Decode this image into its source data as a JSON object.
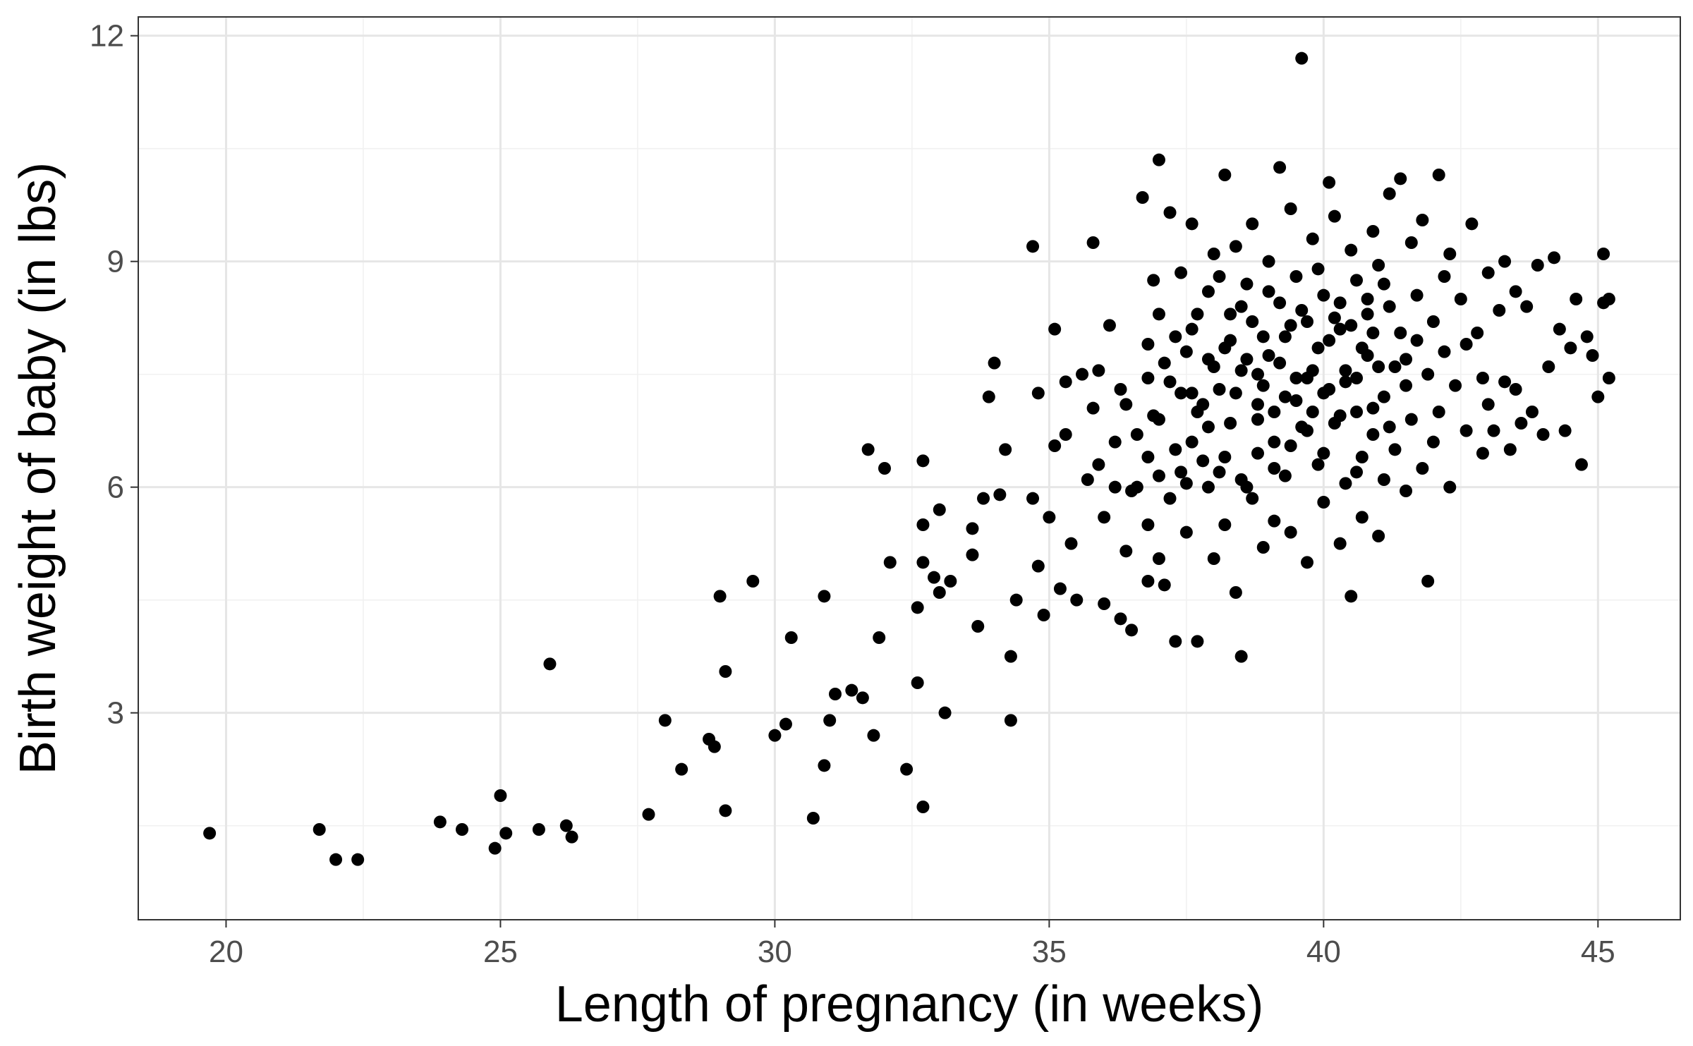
{
  "chart_data": {
    "type": "scatter",
    "xlabel": "Length of pregnancy (in weeks)",
    "ylabel": "Birth weight of baby (in lbs)",
    "xlim": [
      18.4,
      46.5
    ],
    "ylim": [
      0.25,
      12.25
    ],
    "xticks": [
      20,
      25,
      30,
      35,
      40,
      45
    ],
    "yticks": [
      3,
      6,
      9,
      12
    ],
    "grid": true,
    "point_color": "#000000",
    "points": [
      [
        19.7,
        1.4
      ],
      [
        21.7,
        1.45
      ],
      [
        22.0,
        1.05
      ],
      [
        22.4,
        1.05
      ],
      [
        23.9,
        1.55
      ],
      [
        24.3,
        1.45
      ],
      [
        24.9,
        1.2
      ],
      [
        25.0,
        1.9
      ],
      [
        25.1,
        1.4
      ],
      [
        25.7,
        1.45
      ],
      [
        25.9,
        3.65
      ],
      [
        26.2,
        1.5
      ],
      [
        26.3,
        1.35
      ],
      [
        27.7,
        1.65
      ],
      [
        28.0,
        2.9
      ],
      [
        28.3,
        2.25
      ],
      [
        28.8,
        2.65
      ],
      [
        28.9,
        2.55
      ],
      [
        29.0,
        4.55
      ],
      [
        29.1,
        3.55
      ],
      [
        29.1,
        1.7
      ],
      [
        29.6,
        4.75
      ],
      [
        30.0,
        2.7
      ],
      [
        30.2,
        2.85
      ],
      [
        30.3,
        4.0
      ],
      [
        30.7,
        1.6
      ],
      [
        30.9,
        4.55
      ],
      [
        30.9,
        2.3
      ],
      [
        31.0,
        2.9
      ],
      [
        31.1,
        3.25
      ],
      [
        31.4,
        3.3
      ],
      [
        31.6,
        3.2
      ],
      [
        31.7,
        6.5
      ],
      [
        31.8,
        2.7
      ],
      [
        31.9,
        4.0
      ],
      [
        32.0,
        6.25
      ],
      [
        32.1,
        5.0
      ],
      [
        32.4,
        2.25
      ],
      [
        32.6,
        4.4
      ],
      [
        32.6,
        3.4
      ],
      [
        32.7,
        5.0
      ],
      [
        32.7,
        6.35
      ],
      [
        32.7,
        1.75
      ],
      [
        32.7,
        5.5
      ],
      [
        32.9,
        4.8
      ],
      [
        33.0,
        5.7
      ],
      [
        33.0,
        4.6
      ],
      [
        33.1,
        3.0
      ],
      [
        33.2,
        4.75
      ],
      [
        33.6,
        5.45
      ],
      [
        33.6,
        5.1
      ],
      [
        33.7,
        4.15
      ],
      [
        33.8,
        5.85
      ],
      [
        33.9,
        7.2
      ],
      [
        34.0,
        7.65
      ],
      [
        34.1,
        5.9
      ],
      [
        34.2,
        6.5
      ],
      [
        34.3,
        3.75
      ],
      [
        34.3,
        2.9
      ],
      [
        34.4,
        4.5
      ],
      [
        34.7,
        5.85
      ],
      [
        34.7,
        9.2
      ],
      [
        34.8,
        4.95
      ],
      [
        34.8,
        7.25
      ],
      [
        34.9,
        4.3
      ],
      [
        35.0,
        5.6
      ],
      [
        35.1,
        6.55
      ],
      [
        35.1,
        8.1
      ],
      [
        35.2,
        4.65
      ],
      [
        35.3,
        6.7
      ],
      [
        35.3,
        7.4
      ],
      [
        35.4,
        5.25
      ],
      [
        35.5,
        4.5
      ],
      [
        35.6,
        7.5
      ],
      [
        35.7,
        6.1
      ],
      [
        35.8,
        7.05
      ],
      [
        35.8,
        9.25
      ],
      [
        35.9,
        6.3
      ],
      [
        35.9,
        7.55
      ],
      [
        36.0,
        5.6
      ],
      [
        36.0,
        4.45
      ],
      [
        36.1,
        8.15
      ],
      [
        36.2,
        6.0
      ],
      [
        36.3,
        7.3
      ],
      [
        36.3,
        4.25
      ],
      [
        36.4,
        5.15
      ],
      [
        36.5,
        4.1
      ],
      [
        36.5,
        5.95
      ],
      [
        36.6,
        6.7
      ],
      [
        36.7,
        9.85
      ],
      [
        36.8,
        5.5
      ],
      [
        36.8,
        7.9
      ],
      [
        36.8,
        6.4
      ],
      [
        36.8,
        4.75
      ],
      [
        36.9,
        8.75
      ],
      [
        36.9,
        6.95
      ],
      [
        37.0,
        10.35
      ],
      [
        37.0,
        5.05
      ],
      [
        37.0,
        8.3
      ],
      [
        37.1,
        4.7
      ],
      [
        37.1,
        7.65
      ],
      [
        37.2,
        5.85
      ],
      [
        37.2,
        9.65
      ],
      [
        37.3,
        3.95
      ],
      [
        37.3,
        6.5
      ],
      [
        37.4,
        8.85
      ],
      [
        37.4,
        7.25
      ],
      [
        37.5,
        6.05
      ],
      [
        37.5,
        5.4
      ],
      [
        37.6,
        8.1
      ],
      [
        37.6,
        9.5
      ],
      [
        37.7,
        7.0
      ],
      [
        37.7,
        3.95
      ],
      [
        37.8,
        6.35
      ],
      [
        37.9,
        8.6
      ],
      [
        37.9,
        7.7
      ],
      [
        38.0,
        5.05
      ],
      [
        38.0,
        9.1
      ],
      [
        38.1,
        6.2
      ],
      [
        38.1,
        7.3
      ],
      [
        38.2,
        10.15
      ],
      [
        38.2,
        5.5
      ],
      [
        38.3,
        8.3
      ],
      [
        38.3,
        6.85
      ],
      [
        38.4,
        4.6
      ],
      [
        38.4,
        9.2
      ],
      [
        38.5,
        3.75
      ],
      [
        38.5,
        7.55
      ],
      [
        38.6,
        6.0
      ],
      [
        38.6,
        8.7
      ],
      [
        38.7,
        5.85
      ],
      [
        38.7,
        9.5
      ],
      [
        38.8,
        7.1
      ],
      [
        38.8,
        6.45
      ],
      [
        38.9,
        5.2
      ],
      [
        38.9,
        8.0
      ],
      [
        39.0,
        7.75
      ],
      [
        39.0,
        9.0
      ],
      [
        39.1,
        6.6
      ],
      [
        39.1,
        5.55
      ],
      [
        39.2,
        10.25
      ],
      [
        39.2,
        8.45
      ],
      [
        39.3,
        7.2
      ],
      [
        39.3,
        6.15
      ],
      [
        39.4,
        9.7
      ],
      [
        39.4,
        5.4
      ],
      [
        39.5,
        8.8
      ],
      [
        39.5,
        7.45
      ],
      [
        39.6,
        6.8
      ],
      [
        39.6,
        11.7
      ],
      [
        39.7,
        5.0
      ],
      [
        39.7,
        8.2
      ],
      [
        39.8,
        7.0
      ],
      [
        39.8,
        9.3
      ],
      [
        39.9,
        6.3
      ],
      [
        39.9,
        7.85
      ],
      [
        40.0,
        8.55
      ],
      [
        40.0,
        5.8
      ],
      [
        40.1,
        10.05
      ],
      [
        40.1,
        7.3
      ],
      [
        40.2,
        6.85
      ],
      [
        40.2,
        9.6
      ],
      [
        40.3,
        8.1
      ],
      [
        40.3,
        5.25
      ],
      [
        40.4,
        7.55
      ],
      [
        40.4,
        6.05
      ],
      [
        40.5,
        9.15
      ],
      [
        40.5,
        4.55
      ],
      [
        40.6,
        8.75
      ],
      [
        40.6,
        7.0
      ],
      [
        40.7,
        6.4
      ],
      [
        40.7,
        5.6
      ],
      [
        40.8,
        8.3
      ],
      [
        40.8,
        7.75
      ],
      [
        40.9,
        9.4
      ],
      [
        40.9,
        6.7
      ],
      [
        41.0,
        5.35
      ],
      [
        41.0,
        8.95
      ],
      [
        41.1,
        7.2
      ],
      [
        41.1,
        6.1
      ],
      [
        41.2,
        8.4
      ],
      [
        41.2,
        9.9
      ],
      [
        41.3,
        7.6
      ],
      [
        41.3,
        6.5
      ],
      [
        41.4,
        10.1
      ],
      [
        41.4,
        8.05
      ],
      [
        41.5,
        7.35
      ],
      [
        41.5,
        5.95
      ],
      [
        41.6,
        9.25
      ],
      [
        41.6,
        6.9
      ],
      [
        41.7,
        8.55
      ],
      [
        41.7,
        7.95
      ],
      [
        41.8,
        6.25
      ],
      [
        41.8,
        9.55
      ],
      [
        41.9,
        7.5
      ],
      [
        41.9,
        4.75
      ],
      [
        42.0,
        8.2
      ],
      [
        42.0,
        6.6
      ],
      [
        42.1,
        10.15
      ],
      [
        42.1,
        7.0
      ],
      [
        42.2,
        8.8
      ],
      [
        42.2,
        7.8
      ],
      [
        42.3,
        6.0
      ],
      [
        42.3,
        9.1
      ],
      [
        42.4,
        7.35
      ],
      [
        42.5,
        8.5
      ],
      [
        42.6,
        6.75
      ],
      [
        42.6,
        7.9
      ],
      [
        42.7,
        9.5
      ],
      [
        42.8,
        8.05
      ],
      [
        42.9,
        7.45
      ],
      [
        42.9,
        6.45
      ],
      [
        43.0,
        8.85
      ],
      [
        43.0,
        7.1
      ],
      [
        43.1,
        6.75
      ],
      [
        43.2,
        8.35
      ],
      [
        43.3,
        7.4
      ],
      [
        43.3,
        9.0
      ],
      [
        43.4,
        6.5
      ],
      [
        43.5,
        8.6
      ],
      [
        43.5,
        7.3
      ],
      [
        43.6,
        6.85
      ],
      [
        43.7,
        8.4
      ],
      [
        43.8,
        7.0
      ],
      [
        43.9,
        8.95
      ],
      [
        44.0,
        6.7
      ],
      [
        44.1,
        7.6
      ],
      [
        44.2,
        9.05
      ],
      [
        44.3,
        8.1
      ],
      [
        44.4,
        6.75
      ],
      [
        44.5,
        7.85
      ],
      [
        44.6,
        8.5
      ],
      [
        44.7,
        6.3
      ],
      [
        44.8,
        8.0
      ],
      [
        44.9,
        7.75
      ],
      [
        45.0,
        7.2
      ],
      [
        45.1,
        8.45
      ],
      [
        45.1,
        9.1
      ],
      [
        45.2,
        7.45
      ],
      [
        45.2,
        8.5
      ],
      [
        37.0,
        6.9
      ],
      [
        37.2,
        7.4
      ],
      [
        37.4,
        6.2
      ],
      [
        37.5,
        7.8
      ],
      [
        37.6,
        6.6
      ],
      [
        37.7,
        8.3
      ],
      [
        37.8,
        7.1
      ],
      [
        37.9,
        6.0
      ],
      [
        38.0,
        7.6
      ],
      [
        38.1,
        8.8
      ],
      [
        38.2,
        6.4
      ],
      [
        38.3,
        7.95
      ],
      [
        38.4,
        7.25
      ],
      [
        38.5,
        6.1
      ],
      [
        38.6,
        7.7
      ],
      [
        38.7,
        8.2
      ],
      [
        38.8,
        6.9
      ],
      [
        38.9,
        7.35
      ],
      [
        39.0,
        8.6
      ],
      [
        39.1,
        6.25
      ],
      [
        39.2,
        7.65
      ],
      [
        39.3,
        8.0
      ],
      [
        39.4,
        6.55
      ],
      [
        39.5,
        7.15
      ],
      [
        39.6,
        8.35
      ],
      [
        39.7,
        6.75
      ],
      [
        39.8,
        7.55
      ],
      [
        39.9,
        8.9
      ],
      [
        40.0,
        6.45
      ],
      [
        40.1,
        7.95
      ],
      [
        40.2,
        8.25
      ],
      [
        40.3,
        6.95
      ],
      [
        40.4,
        7.4
      ],
      [
        40.5,
        8.15
      ],
      [
        40.6,
        6.2
      ],
      [
        40.7,
        7.85
      ],
      [
        40.8,
        8.5
      ],
      [
        40.9,
        7.05
      ],
      [
        41.0,
        7.6
      ],
      [
        41.1,
        8.7
      ],
      [
        36.2,
        6.6
      ],
      [
        36.4,
        7.1
      ],
      [
        36.6,
        6.0
      ],
      [
        36.8,
        7.45
      ],
      [
        37.0,
        6.15
      ],
      [
        37.3,
        8.0
      ],
      [
        37.6,
        7.25
      ],
      [
        37.9,
        6.8
      ],
      [
        38.2,
        7.85
      ],
      [
        38.5,
        8.4
      ],
      [
        38.8,
        7.5
      ],
      [
        39.1,
        7.0
      ],
      [
        39.4,
        8.15
      ],
      [
        39.7,
        7.45
      ],
      [
        40.0,
        7.25
      ],
      [
        40.3,
        8.45
      ],
      [
        40.6,
        7.45
      ],
      [
        40.9,
        8.05
      ],
      [
        41.2,
        6.8
      ],
      [
        41.5,
        7.7
      ]
    ]
  }
}
